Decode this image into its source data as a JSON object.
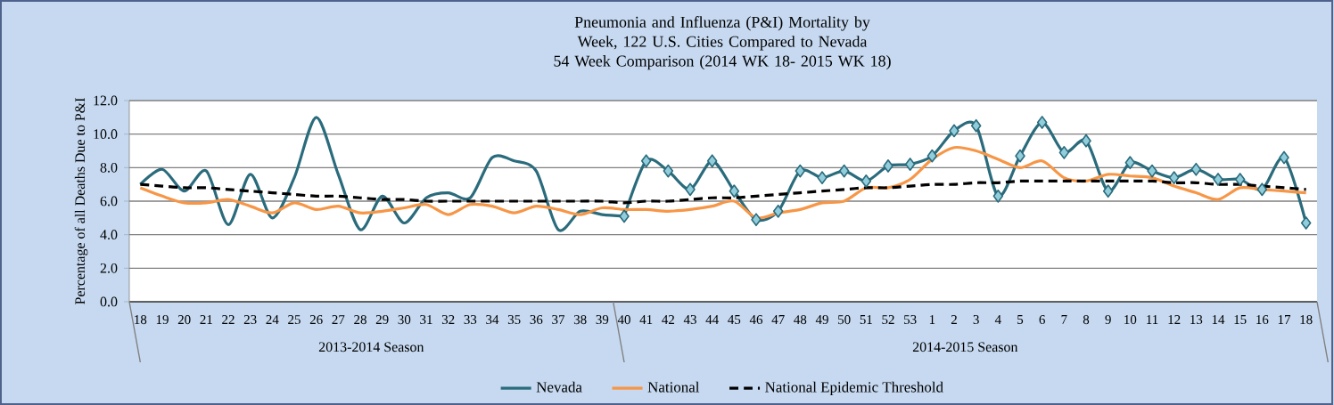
{
  "chart_data": {
    "type": "line",
    "title": "Pneumonia and Influenza (P&I) Mortality by Week, 122 U.S. Cities Compared to Nevada",
    "subtitle": "54 Week Comparison (2014 WK 18- 2015 WK 18)",
    "ylabel": "Percentage of all Deaths Due to P&I",
    "categories": [
      "18",
      "19",
      "20",
      "21",
      "22",
      "23",
      "24",
      "25",
      "26",
      "27",
      "28",
      "29",
      "30",
      "31",
      "32",
      "33",
      "34",
      "35",
      "36",
      "37",
      "38",
      "39",
      "40",
      "41",
      "42",
      "43",
      "44",
      "45",
      "46",
      "47",
      "48",
      "49",
      "50",
      "51",
      "52",
      "53",
      "1",
      "2",
      "3",
      "4",
      "5",
      "6",
      "7",
      "8",
      "9",
      "10",
      "11",
      "12",
      "13",
      "14",
      "15",
      "16",
      "17",
      "18"
    ],
    "annotations": [
      "2013-2014 Season",
      "2014-2015 Season"
    ],
    "ylim": [
      0,
      12
    ],
    "yticks": [
      {
        "value": 0,
        "label": "0.0"
      },
      {
        "value": 2,
        "label": "2.0"
      },
      {
        "value": 4,
        "label": "4.0"
      },
      {
        "value": 6,
        "label": "6.0"
      },
      {
        "value": 8,
        "label": "8.0"
      },
      {
        "value": 10,
        "label": "10.0"
      },
      {
        "value": 12,
        "label": "12.0"
      }
    ],
    "grid": "y",
    "legend": "bottom",
    "series": [
      {
        "name": "Nevada",
        "color": "#2a6b7c",
        "marker": "none",
        "values": [
          7.0,
          7.9,
          6.6,
          7.8,
          4.6,
          7.6,
          5.0,
          7.4,
          11.0,
          7.6,
          4.3,
          6.3,
          4.7,
          6.2,
          6.5,
          6.2,
          8.6,
          8.4,
          7.8,
          4.3,
          5.4,
          5.2,
          5.1,
          null,
          null,
          null,
          null,
          null,
          null,
          null,
          null,
          null,
          null,
          null,
          null,
          null,
          null,
          null,
          null,
          null,
          null,
          null,
          null,
          null,
          null,
          null,
          null,
          null,
          null,
          null,
          null,
          null,
          null,
          null
        ]
      },
      {
        "color": "#2a6b7c",
        "marker": "diamond",
        "values": [
          null,
          null,
          null,
          null,
          null,
          null,
          null,
          null,
          null,
          null,
          null,
          null,
          null,
          null,
          null,
          null,
          null,
          null,
          null,
          null,
          null,
          null,
          5.1,
          8.4,
          7.8,
          6.7,
          8.4,
          6.6,
          4.9,
          5.4,
          7.8,
          7.4,
          7.8,
          7.2,
          8.1,
          8.2,
          8.7,
          10.2,
          10.5,
          6.3,
          8.7,
          10.7,
          8.9,
          9.6,
          6.6,
          8.3,
          7.8,
          7.4,
          7.9,
          7.3,
          7.3,
          6.7,
          8.6,
          4.7
        ]
      },
      {
        "name": "National",
        "color": "#f79646",
        "marker": "none",
        "values": [
          6.8,
          6.3,
          5.9,
          5.9,
          6.1,
          5.7,
          5.3,
          5.9,
          5.5,
          5.7,
          5.3,
          5.4,
          5.6,
          5.8,
          5.2,
          5.8,
          5.7,
          5.3,
          5.7,
          5.5,
          5.2,
          5.6,
          5.5,
          5.5,
          5.4,
          5.5,
          5.7,
          6.0,
          5.0,
          5.3,
          5.5,
          5.9,
          6.0,
          6.8,
          6.8,
          7.3,
          8.5,
          9.2,
          9.0,
          8.5,
          8.0,
          8.4,
          7.4,
          7.2,
          7.6,
          7.5,
          7.4,
          6.9,
          6.5,
          6.1,
          6.8,
          6.7,
          6.6,
          6.5
        ]
      },
      {
        "name": "National Epidemic Threshold",
        "color": "#000000",
        "marker": "none",
        "line_style": "dashed",
        "values": [
          7.0,
          6.9,
          6.8,
          6.8,
          6.7,
          6.6,
          6.5,
          6.4,
          6.3,
          6.3,
          6.2,
          6.1,
          6.1,
          6.0,
          6.0,
          6.0,
          6.0,
          6.0,
          6.0,
          6.0,
          6.0,
          6.0,
          5.9,
          6.0,
          6.0,
          6.1,
          6.2,
          6.2,
          6.3,
          6.4,
          6.5,
          6.6,
          6.7,
          6.8,
          6.8,
          6.9,
          7.0,
          7.0,
          7.1,
          7.1,
          7.2,
          7.2,
          7.2,
          7.2,
          7.2,
          7.2,
          7.2,
          7.1,
          7.1,
          7.0,
          7.0,
          6.9,
          6.8,
          6.7
        ]
      }
    ]
  }
}
